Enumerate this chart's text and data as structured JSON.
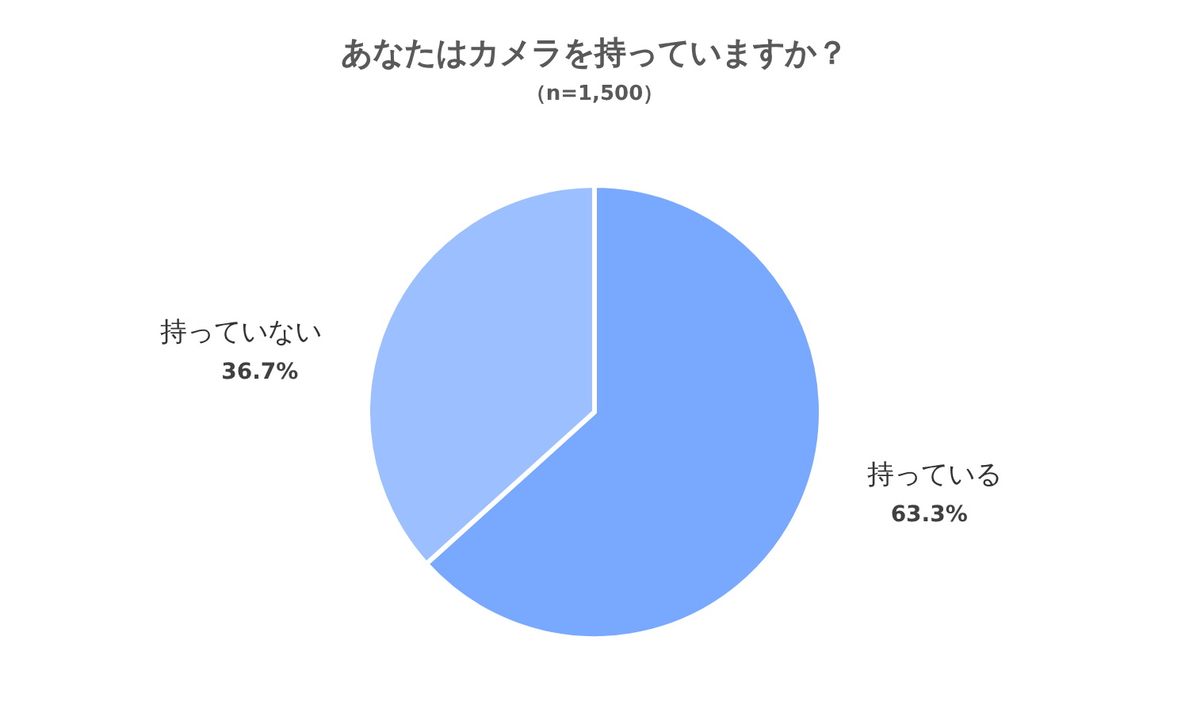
{
  "chart_data": {
    "type": "pie",
    "title": "あなたはカメラを持っていますか？",
    "subtitle": "（n=1,500）",
    "categories": [
      "持っている",
      "持っていない"
    ],
    "values": [
      63.3,
      36.7
    ],
    "colors": [
      "#78a9ff",
      "#9cc0ff"
    ],
    "value_labels": [
      "63.3%",
      "36.7%"
    ]
  }
}
